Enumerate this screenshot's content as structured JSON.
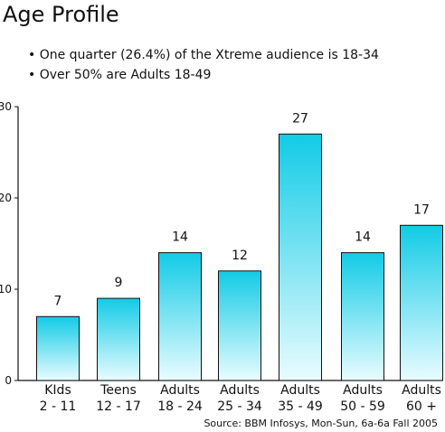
{
  "header": {
    "title": "Age Profile"
  },
  "bullets": [
    "• One quarter (26.4%) of the Xtreme audience is 18-34",
    "• Over 50% are Adults 18-49"
  ],
  "chart_data": {
    "type": "bar",
    "title": "",
    "xlabel": "",
    "ylabel": "",
    "categories": [
      [
        "KIds",
        "2 - 11"
      ],
      [
        "Teens",
        "12 - 17"
      ],
      [
        "Adults",
        "18 - 24"
      ],
      [
        "Adults",
        "25 - 34"
      ],
      [
        "Adults",
        "35 - 49"
      ],
      [
        "Adults",
        "50 - 59"
      ],
      [
        "Adults",
        "60 +"
      ]
    ],
    "values": [
      7,
      9,
      14,
      12,
      27,
      14,
      17
    ],
    "ylim": [
      0,
      30
    ],
    "yticks": [
      0,
      10,
      20,
      30
    ],
    "grid": false,
    "data_labels": true,
    "colors": {
      "bar_top": "#12cbe6",
      "bar_bottom": "#e9fcff",
      "bar_stroke": "#111111",
      "axis": "#111111"
    }
  },
  "source": "Source: BBM Infosys, Mon-Sun, 6a-6a Fall 2005"
}
